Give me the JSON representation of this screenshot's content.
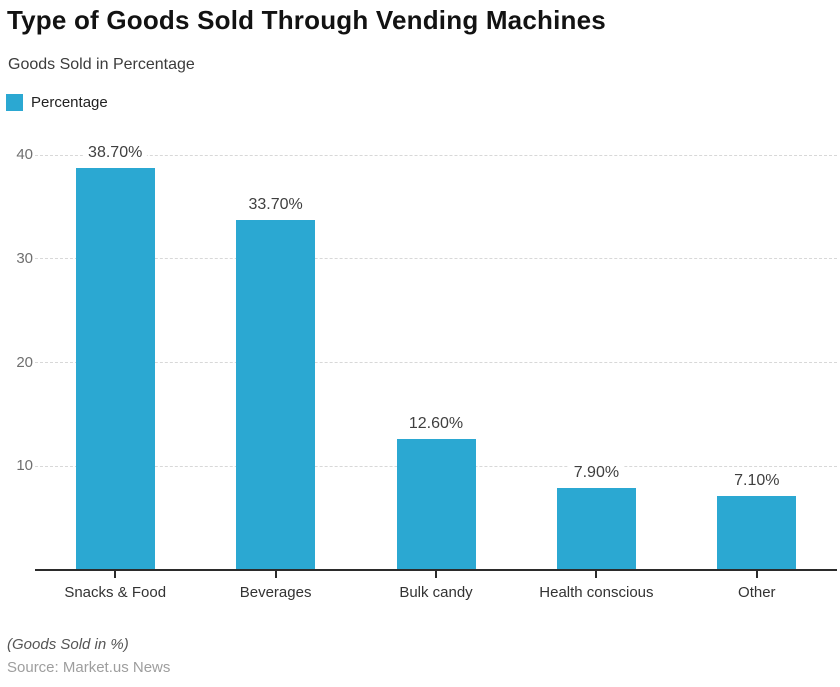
{
  "header": {
    "title": "Type of Goods Sold Through Vending Machines",
    "subtitle": "Goods Sold in Percentage"
  },
  "legend": {
    "label": "Percentage",
    "swatch_color": "#2BA8D2"
  },
  "chart_data": {
    "type": "bar",
    "title": "Type of Goods Sold Through Vending Machines",
    "subtitle": "Goods Sold in Percentage",
    "categories": [
      "Snacks & Food",
      "Beverages",
      "Bulk candy",
      "Health conscious",
      "Other"
    ],
    "series": [
      {
        "name": "Percentage",
        "values": [
          38.7,
          33.7,
          12.6,
          7.9,
          7.1
        ]
      }
    ],
    "value_labels": [
      "38.70%",
      "33.70%",
      "12.60%",
      "7.90%",
      "7.10%"
    ],
    "xlabel": "",
    "ylabel": "",
    "ylim": [
      0,
      40
    ],
    "yticks": [
      10,
      20,
      30,
      40
    ],
    "grid": "horizontal-dashed",
    "legend_position": "top-left",
    "bar_color": "#2BA8D2",
    "gridline_color": "#d8d8d8",
    "axis_color": "#2b2b2b"
  },
  "footer": {
    "note": "(Goods Sold in %)",
    "source": "Source: Market.us News"
  }
}
